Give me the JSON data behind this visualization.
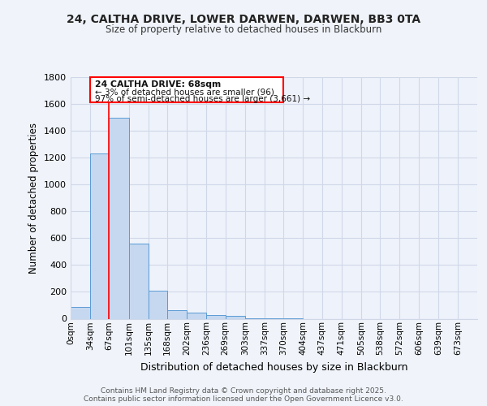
{
  "title_line1": "24, CALTHA DRIVE, LOWER DARWEN, DARWEN, BB3 0TA",
  "title_line2": "Size of property relative to detached houses in Blackburn",
  "xlabel": "Distribution of detached houses by size in Blackburn",
  "ylabel": "Number of detached properties",
  "bin_labels": [
    "0sqm",
    "34sqm",
    "67sqm",
    "101sqm",
    "135sqm",
    "168sqm",
    "202sqm",
    "236sqm",
    "269sqm",
    "303sqm",
    "337sqm",
    "370sqm",
    "404sqm",
    "437sqm",
    "471sqm",
    "505sqm",
    "538sqm",
    "572sqm",
    "606sqm",
    "639sqm",
    "673sqm"
  ],
  "bin_edges": [
    0,
    34,
    67,
    101,
    135,
    168,
    202,
    236,
    269,
    303,
    337,
    370,
    404,
    437,
    471,
    505,
    538,
    572,
    606,
    639,
    673,
    707
  ],
  "bar_heights": [
    90,
    1230,
    1500,
    560,
    210,
    65,
    45,
    30,
    20,
    5,
    2,
    1,
    0,
    0,
    0,
    0,
    0,
    0,
    0,
    0,
    0
  ],
  "bar_color": "#c5d8f0",
  "bar_edge_color": "#5b9bd5",
  "red_line_x": 67,
  "annotation_line1": "24 CALTHA DRIVE: 68sqm",
  "annotation_line2": "← 3% of detached houses are smaller (96)",
  "annotation_line3": "97% of semi-detached houses are larger (3,661) →",
  "ylim": [
    0,
    1800
  ],
  "yticks": [
    0,
    200,
    400,
    600,
    800,
    1000,
    1200,
    1400,
    1600,
    1800
  ],
  "background_color": "#f0f4fa",
  "plot_bg_color": "#eef2fa",
  "grid_color": "#d0d8e8",
  "footer_line1": "Contains HM Land Registry data © Crown copyright and database right 2025.",
  "footer_line2": "Contains public sector information licensed under the Open Government Licence v3.0."
}
